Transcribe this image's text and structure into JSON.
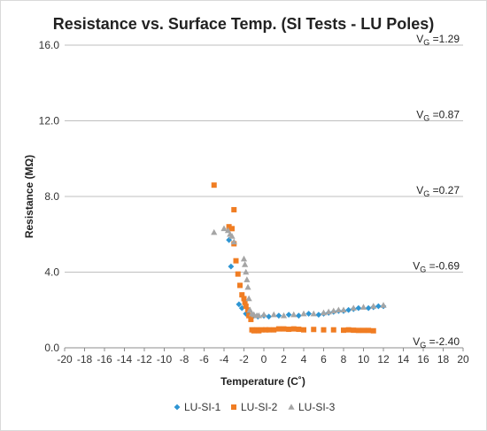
{
  "chart_data": {
    "type": "scatter",
    "title": "Resistance vs. Surface Temp. (SI Tests - LU Poles)",
    "xlabel": "Temperature (C˚)",
    "ylabel": "Resistance (MΩ)",
    "xlim": [
      -20,
      20
    ],
    "ylim": [
      0,
      16
    ],
    "x_ticks": [
      -20,
      -18,
      -16,
      -14,
      -12,
      -10,
      -8,
      -6,
      -4,
      -2,
      0,
      2,
      4,
      6,
      8,
      10,
      12,
      14,
      16,
      18,
      20
    ],
    "y_ticks": [
      "0.0",
      "4.0",
      "8.0",
      "12.0",
      "16.0"
    ],
    "grid": "horizontal",
    "legend_position": "bottom",
    "annotations": [
      {
        "prefix": "V",
        "sub": "G",
        "suffix": " =1.29",
        "y": 16.0
      },
      {
        "prefix": "V",
        "sub": "G",
        "suffix": " =0.87",
        "y": 12.0
      },
      {
        "prefix": "V",
        "sub": "G",
        "suffix": " =0.27",
        "y": 8.0
      },
      {
        "prefix": "V",
        "sub": "G",
        "suffix": " =-0.69",
        "y": 4.0
      },
      {
        "prefix": "V",
        "sub": "G",
        "suffix": " =-2.40",
        "y": 0.0
      }
    ],
    "series": [
      {
        "name": "LU-SI-1",
        "marker": "diamond",
        "color": "#2e95d3",
        "points": [
          [
            -3.5,
            5.7
          ],
          [
            -3.3,
            4.3
          ],
          [
            -2.5,
            2.3
          ],
          [
            -2.2,
            2.1
          ],
          [
            -1.8,
            1.8
          ],
          [
            -1.5,
            1.75
          ],
          [
            -1.0,
            1.7
          ],
          [
            -0.6,
            1.65
          ],
          [
            0.0,
            1.7
          ],
          [
            0.5,
            1.65
          ],
          [
            1.5,
            1.7
          ],
          [
            2.5,
            1.75
          ],
          [
            3.5,
            1.7
          ],
          [
            4.5,
            1.8
          ],
          [
            5.5,
            1.75
          ],
          [
            6.0,
            1.8
          ],
          [
            6.5,
            1.85
          ],
          [
            7.0,
            1.9
          ],
          [
            7.5,
            1.95
          ],
          [
            8.0,
            1.95
          ],
          [
            8.5,
            2.0
          ],
          [
            9.0,
            2.05
          ],
          [
            9.5,
            2.1
          ],
          [
            10.5,
            2.1
          ],
          [
            11.0,
            2.15
          ],
          [
            11.5,
            2.2
          ],
          [
            12.0,
            2.2
          ]
        ]
      },
      {
        "name": "LU-SI-2",
        "marker": "square",
        "color": "#f07d23",
        "points": [
          [
            -5.0,
            8.6
          ],
          [
            -3.5,
            6.4
          ],
          [
            -3.2,
            6.3
          ],
          [
            -3.0,
            7.3
          ],
          [
            -3.0,
            5.5
          ],
          [
            -2.8,
            4.6
          ],
          [
            -2.6,
            3.9
          ],
          [
            -2.4,
            3.3
          ],
          [
            -2.2,
            2.8
          ],
          [
            -2.0,
            2.6
          ],
          [
            -1.9,
            2.4
          ],
          [
            -1.8,
            2.2
          ],
          [
            -1.6,
            2.0
          ],
          [
            -1.5,
            1.7
          ],
          [
            -1.3,
            1.5
          ],
          [
            -1.2,
            0.95
          ],
          [
            -1.0,
            0.9
          ],
          [
            -0.7,
            0.95
          ],
          [
            -0.5,
            0.9
          ],
          [
            -0.2,
            0.95
          ],
          [
            0.2,
            0.95
          ],
          [
            0.5,
            0.95
          ],
          [
            1.0,
            0.95
          ],
          [
            1.5,
            1.0
          ],
          [
            2.0,
            1.0
          ],
          [
            2.5,
            0.98
          ],
          [
            3.0,
            1.0
          ],
          [
            3.5,
            0.98
          ],
          [
            4.0,
            0.95
          ],
          [
            5.0,
            0.97
          ],
          [
            6.0,
            0.95
          ],
          [
            7.0,
            0.95
          ],
          [
            8.0,
            0.93
          ],
          [
            8.5,
            0.95
          ],
          [
            9.0,
            0.93
          ],
          [
            9.5,
            0.92
          ],
          [
            10.0,
            0.92
          ],
          [
            10.5,
            0.92
          ],
          [
            11.0,
            0.9
          ]
        ]
      },
      {
        "name": "LU-SI-3",
        "marker": "triangle",
        "color": "#a5a5a5",
        "points": [
          [
            -5.0,
            6.1
          ],
          [
            -4.0,
            6.3
          ],
          [
            -3.6,
            6.2
          ],
          [
            -3.4,
            6.0
          ],
          [
            -3.2,
            5.9
          ],
          [
            -3.0,
            5.6
          ],
          [
            -2.0,
            4.7
          ],
          [
            -1.9,
            4.4
          ],
          [
            -1.8,
            4.0
          ],
          [
            -1.7,
            3.6
          ],
          [
            -1.6,
            3.2
          ],
          [
            -1.5,
            2.6
          ],
          [
            -1.4,
            2.0
          ],
          [
            -1.2,
            1.8
          ],
          [
            -1.0,
            1.75
          ],
          [
            -0.7,
            1.7
          ],
          [
            -0.5,
            1.7
          ],
          [
            0.0,
            1.75
          ],
          [
            1.0,
            1.75
          ],
          [
            2.0,
            1.7
          ],
          [
            3.0,
            1.75
          ],
          [
            4.0,
            1.8
          ],
          [
            5.0,
            1.8
          ],
          [
            6.0,
            1.85
          ],
          [
            6.5,
            1.9
          ],
          [
            7.0,
            1.95
          ],
          [
            7.5,
            2.0
          ],
          [
            8.0,
            2.0
          ],
          [
            9.0,
            2.1
          ],
          [
            10.0,
            2.15
          ],
          [
            11.0,
            2.2
          ],
          [
            12.0,
            2.25
          ]
        ]
      }
    ]
  }
}
